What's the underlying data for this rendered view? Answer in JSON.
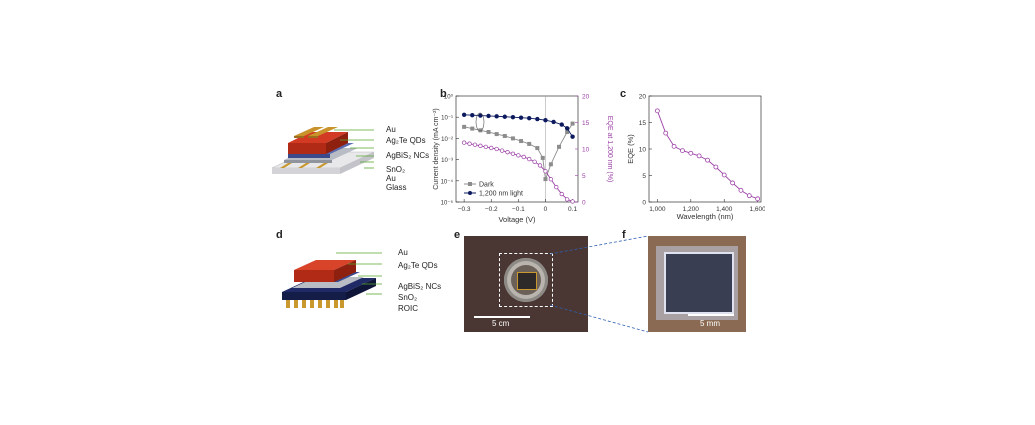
{
  "panels": {
    "a": "a",
    "b": "b",
    "c": "c",
    "d": "d",
    "e": "e",
    "f": "f"
  },
  "device_a_layers": [
    "Au",
    "Ag₂Te QDs",
    "AgBiS₂ NCs",
    "SnO₂",
    "Au",
    "Glass"
  ],
  "device_d_layers": [
    "Au",
    "Ag₂Te QDs",
    "AgBiS₂ NCs",
    "SnO₂",
    "ROIC"
  ],
  "scalebars": {
    "e": "5 cm",
    "f": "5 mm"
  },
  "colors": {
    "purple": "#9b3fa6",
    "navy": "#0d1b5e",
    "gray": "#8c8c8c",
    "dashed": "#2f5fb0"
  },
  "chart_data": [
    {
      "type": "line",
      "xlabel": "Voltage (V)",
      "ylabel": "Current density (mA cm⁻²)",
      "y2label": "EQE at 1,200 nm (%)",
      "xticks": [
        "−0.3",
        "−0.2",
        "−0.1",
        "0",
        "0.1"
      ],
      "yticks": [
        "10⁰",
        "10⁻¹",
        "10⁻²",
        "10⁻³",
        "10⁻⁴",
        "10⁻⁵"
      ],
      "y2ticks": [
        "20",
        "15",
        "10",
        "5",
        "0"
      ],
      "xlim": [
        -0.33,
        0.12
      ],
      "ylog": true,
      "ylim": [
        1e-05,
        1
      ],
      "y2lim": [
        0,
        20
      ],
      "series": [
        {
          "name": "Dark",
          "color": "#8c8c8c",
          "marker": "square",
          "x": [
            -0.3,
            -0.27,
            -0.24,
            -0.21,
            -0.18,
            -0.15,
            -0.12,
            -0.09,
            -0.06,
            -0.03,
            -0.01,
            0.0,
            0.02,
            0.05,
            0.08,
            0.1
          ],
          "y": [
            0.035,
            0.029,
            0.024,
            0.02,
            0.016,
            0.013,
            0.01,
            0.0075,
            0.0055,
            0.0035,
            0.0012,
            0.00012,
            0.0006,
            0.004,
            0.02,
            0.05
          ]
        },
        {
          "name": "1,200 nm light",
          "color": "#0d1b5e",
          "marker": "circle",
          "x": [
            -0.3,
            -0.27,
            -0.24,
            -0.21,
            -0.18,
            -0.15,
            -0.12,
            -0.09,
            -0.06,
            -0.03,
            0.0,
            0.03,
            0.06,
            0.08,
            0.1
          ],
          "y": [
            0.13,
            0.125,
            0.12,
            0.115,
            0.11,
            0.105,
            0.1,
            0.095,
            0.09,
            0.082,
            0.072,
            0.06,
            0.045,
            0.03,
            0.012
          ]
        },
        {
          "name": "EQE",
          "color": "#9b3fa6",
          "marker": "open-circle",
          "axis": "right",
          "x": [
            -0.3,
            -0.28,
            -0.26,
            -0.24,
            -0.22,
            -0.2,
            -0.18,
            -0.16,
            -0.14,
            -0.12,
            -0.1,
            -0.08,
            -0.06,
            -0.04,
            -0.02,
            0.0,
            0.02,
            0.04,
            0.06,
            0.08,
            0.1
          ],
          "y": [
            11.2,
            11.0,
            10.8,
            10.6,
            10.4,
            10.2,
            10.0,
            9.7,
            9.4,
            9.1,
            8.8,
            8.5,
            8.1,
            7.6,
            6.9,
            5.8,
            4.3,
            2.8,
            1.5,
            0.5,
            0.1
          ]
        }
      ]
    },
    {
      "type": "line",
      "xlabel": "Wavelength (nm)",
      "ylabel": "EQE (%)",
      "xticks": [
        "1,000",
        "1,200",
        "1,400",
        "1,600"
      ],
      "yticks": [
        "20",
        "15",
        "10",
        "5",
        "0"
      ],
      "xlim": [
        950,
        1620
      ],
      "ylim": [
        0,
        20
      ],
      "series": [
        {
          "color": "#9b3fa6",
          "marker": "open-circle",
          "x": [
            1000,
            1050,
            1100,
            1150,
            1200,
            1250,
            1300,
            1350,
            1400,
            1450,
            1500,
            1550,
            1600
          ],
          "y": [
            17.2,
            13.0,
            10.5,
            9.7,
            9.2,
            8.7,
            7.9,
            6.6,
            5.1,
            3.6,
            2.2,
            1.2,
            0.6
          ]
        }
      ]
    }
  ]
}
